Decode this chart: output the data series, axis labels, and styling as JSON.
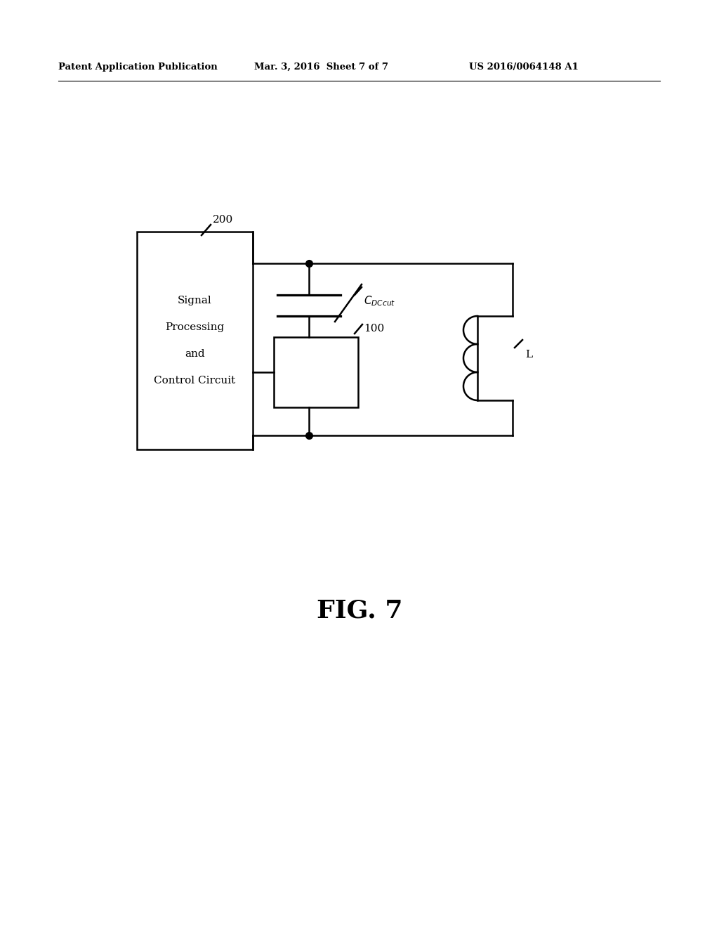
{
  "background_color": "#ffffff",
  "header_left": "Patent Application Publication",
  "header_mid": "Mar. 3, 2016  Sheet 7 of 7",
  "header_right": "US 2016/0064148 A1",
  "fig_label": "FIG. 7",
  "signal_box_label": [
    "Signal",
    "Processing",
    "and",
    "Control Circuit"
  ],
  "label_200": "200",
  "label_100": "100",
  "label_L": "L",
  "line_color": "#000000",
  "lw": 1.8
}
